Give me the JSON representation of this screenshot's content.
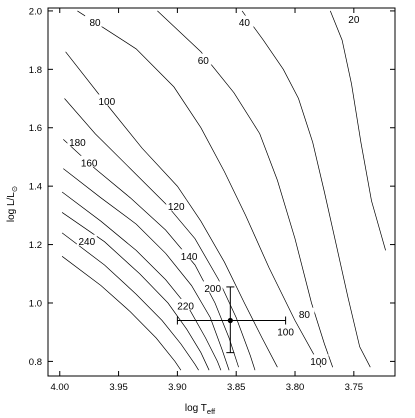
{
  "chart_data": {
    "type": "line",
    "title": "",
    "x_reversed": true,
    "grid": false,
    "xlim": [
      4.01,
      3.715
    ],
    "ylim": [
      0.75,
      2.01
    ],
    "xticks": [
      {
        "value": 4.0,
        "label": "4.00"
      },
      {
        "value": 3.95,
        "label": "3.95"
      },
      {
        "value": 3.9,
        "label": "3.90"
      },
      {
        "value": 3.85,
        "label": "3.85"
      },
      {
        "value": 3.8,
        "label": "3.80"
      },
      {
        "value": 3.75,
        "label": "3.75"
      }
    ],
    "yticks": [
      {
        "value": 0.8,
        "label": "0.8"
      },
      {
        "value": 1.0,
        "label": "1.0"
      },
      {
        "value": 1.2,
        "label": "1.2"
      },
      {
        "value": 1.4,
        "label": "1.4"
      },
      {
        "value": 1.6,
        "label": "1.6"
      },
      {
        "value": 1.8,
        "label": "1.8"
      },
      {
        "value": 2.0,
        "label": "2.0"
      }
    ],
    "series": [
      {
        "label": "20",
        "label_at": [
          3.75,
          1.97
        ],
        "points": [
          [
            3.77,
            2.0
          ],
          [
            3.76,
            1.9
          ],
          [
            3.752,
            1.75
          ],
          [
            3.744,
            1.55
          ],
          [
            3.735,
            1.35
          ],
          [
            3.723,
            1.18
          ]
        ]
      },
      {
        "label": "40",
        "label_at": [
          3.843,
          1.96
        ],
        "points": [
          [
            3.845,
            2.0
          ],
          [
            3.827,
            1.9
          ],
          [
            3.81,
            1.8
          ],
          [
            3.797,
            1.7
          ],
          [
            3.785,
            1.55
          ],
          [
            3.775,
            1.38
          ],
          [
            3.765,
            1.2
          ],
          [
            3.755,
            1.02
          ],
          [
            3.745,
            0.85
          ],
          [
            3.736,
            0.78
          ]
        ]
      },
      {
        "label": "60",
        "label_at": [
          3.878,
          1.83
        ],
        "points": [
          [
            3.917,
            2.0
          ],
          [
            3.88,
            1.86
          ],
          [
            3.852,
            1.72
          ],
          [
            3.83,
            1.58
          ],
          [
            3.815,
            1.42
          ],
          [
            3.8,
            1.22
          ],
          [
            3.786,
            1.0
          ],
          [
            3.775,
            0.86
          ],
          [
            3.768,
            0.78
          ]
        ]
      },
      {
        "label": "80",
        "label_at": [
          3.97,
          1.96
        ],
        "points": [
          [
            3.985,
            2.0
          ],
          [
            3.935,
            1.87
          ],
          [
            3.903,
            1.74
          ],
          [
            3.88,
            1.6
          ],
          [
            3.86,
            1.45
          ],
          [
            3.842,
            1.3
          ],
          [
            3.822,
            1.12
          ],
          [
            3.8,
            0.94
          ],
          [
            3.778,
            0.78
          ]
        ]
      },
      {
        "label": "100",
        "label_at": [
          3.96,
          1.69
        ],
        "points": [
          [
            3.995,
            1.86
          ],
          [
            3.96,
            1.68
          ],
          [
            3.93,
            1.53
          ],
          [
            3.9,
            1.4
          ],
          [
            3.88,
            1.28
          ],
          [
            3.86,
            1.14
          ],
          [
            3.843,
            1.0
          ],
          [
            3.828,
            0.88
          ],
          [
            3.815,
            0.78
          ]
        ]
      },
      {
        "label": "120",
        "label_at": [
          3.901,
          1.33
        ],
        "points": [
          [
            3.996,
            1.7
          ],
          [
            3.97,
            1.58
          ],
          [
            3.94,
            1.46
          ],
          [
            3.91,
            1.34
          ],
          [
            3.885,
            1.22
          ],
          [
            3.865,
            1.08
          ],
          [
            3.85,
            0.95
          ],
          [
            3.838,
            0.82
          ],
          [
            3.834,
            0.77
          ]
        ]
      },
      {
        "label": "140",
        "label_at": [
          3.89,
          1.16
        ],
        "points": [
          [
            3.997,
            1.56
          ],
          [
            3.97,
            1.46
          ],
          [
            3.94,
            1.36
          ],
          [
            3.91,
            1.25
          ],
          [
            3.885,
            1.13
          ],
          [
            3.868,
            1.0
          ],
          [
            3.856,
            0.88
          ],
          [
            3.848,
            0.78
          ]
        ]
      },
      {
        "label": "160",
        "label_at": [
          3.975,
          1.48
        ],
        "points": [
          [
            3.997,
            1.46
          ],
          [
            3.965,
            1.36
          ],
          [
            3.935,
            1.27
          ],
          [
            3.91,
            1.17
          ],
          [
            3.888,
            1.06
          ],
          [
            3.872,
            0.95
          ],
          [
            3.862,
            0.84
          ],
          [
            3.856,
            0.77
          ]
        ]
      },
      {
        "label": "180",
        "label_at": [
          3.985,
          1.55
        ],
        "points": [
          [
            3.998,
            1.38
          ],
          [
            3.965,
            1.28
          ],
          [
            3.935,
            1.18
          ],
          [
            3.91,
            1.08
          ],
          [
            3.89,
            0.98
          ],
          [
            3.876,
            0.88
          ],
          [
            3.866,
            0.8
          ],
          [
            3.863,
            0.77
          ]
        ]
      },
      {
        "label": "200",
        "label_at": [
          3.87,
          1.05
        ],
        "points": [
          [
            3.998,
            1.31
          ],
          [
            3.962,
            1.21
          ],
          [
            3.932,
            1.1
          ],
          [
            3.908,
            1.0
          ],
          [
            3.892,
            0.91
          ],
          [
            3.88,
            0.83
          ],
          [
            3.873,
            0.77
          ]
        ]
      },
      {
        "label": "220",
        "label_at": [
          3.893,
          0.99
        ],
        "points": [
          [
            3.998,
            1.24
          ],
          [
            3.962,
            1.13
          ],
          [
            3.935,
            1.03
          ],
          [
            3.913,
            0.94
          ],
          [
            3.897,
            0.86
          ],
          [
            3.885,
            0.79
          ],
          [
            3.882,
            0.77
          ]
        ]
      },
      {
        "label": "240",
        "label_at": [
          3.977,
          1.21
        ],
        "points": [
          [
            3.998,
            1.16
          ],
          [
            3.965,
            1.06
          ],
          [
            3.94,
            0.97
          ],
          [
            3.918,
            0.88
          ],
          [
            3.902,
            0.8
          ],
          [
            3.897,
            0.77
          ]
        ]
      },
      {
        "label": "80",
        "label_at": [
          3.792,
          0.96
        ],
        "points": []
      },
      {
        "label": "100",
        "label_at": [
          3.808,
          0.9
        ],
        "points": []
      },
      {
        "label": "100",
        "label_at": [
          3.78,
          0.8
        ],
        "points": []
      }
    ],
    "datapoint": {
      "x": 3.855,
      "y": 0.94,
      "x_err": [
        3.9,
        3.808
      ],
      "y_err": [
        0.83,
        1.055
      ]
    }
  },
  "axes": {
    "xlabel_main": "log T",
    "xlabel_sub": "eff",
    "ylabel_main": "log L/L",
    "ylabel_sub": "⊙"
  }
}
